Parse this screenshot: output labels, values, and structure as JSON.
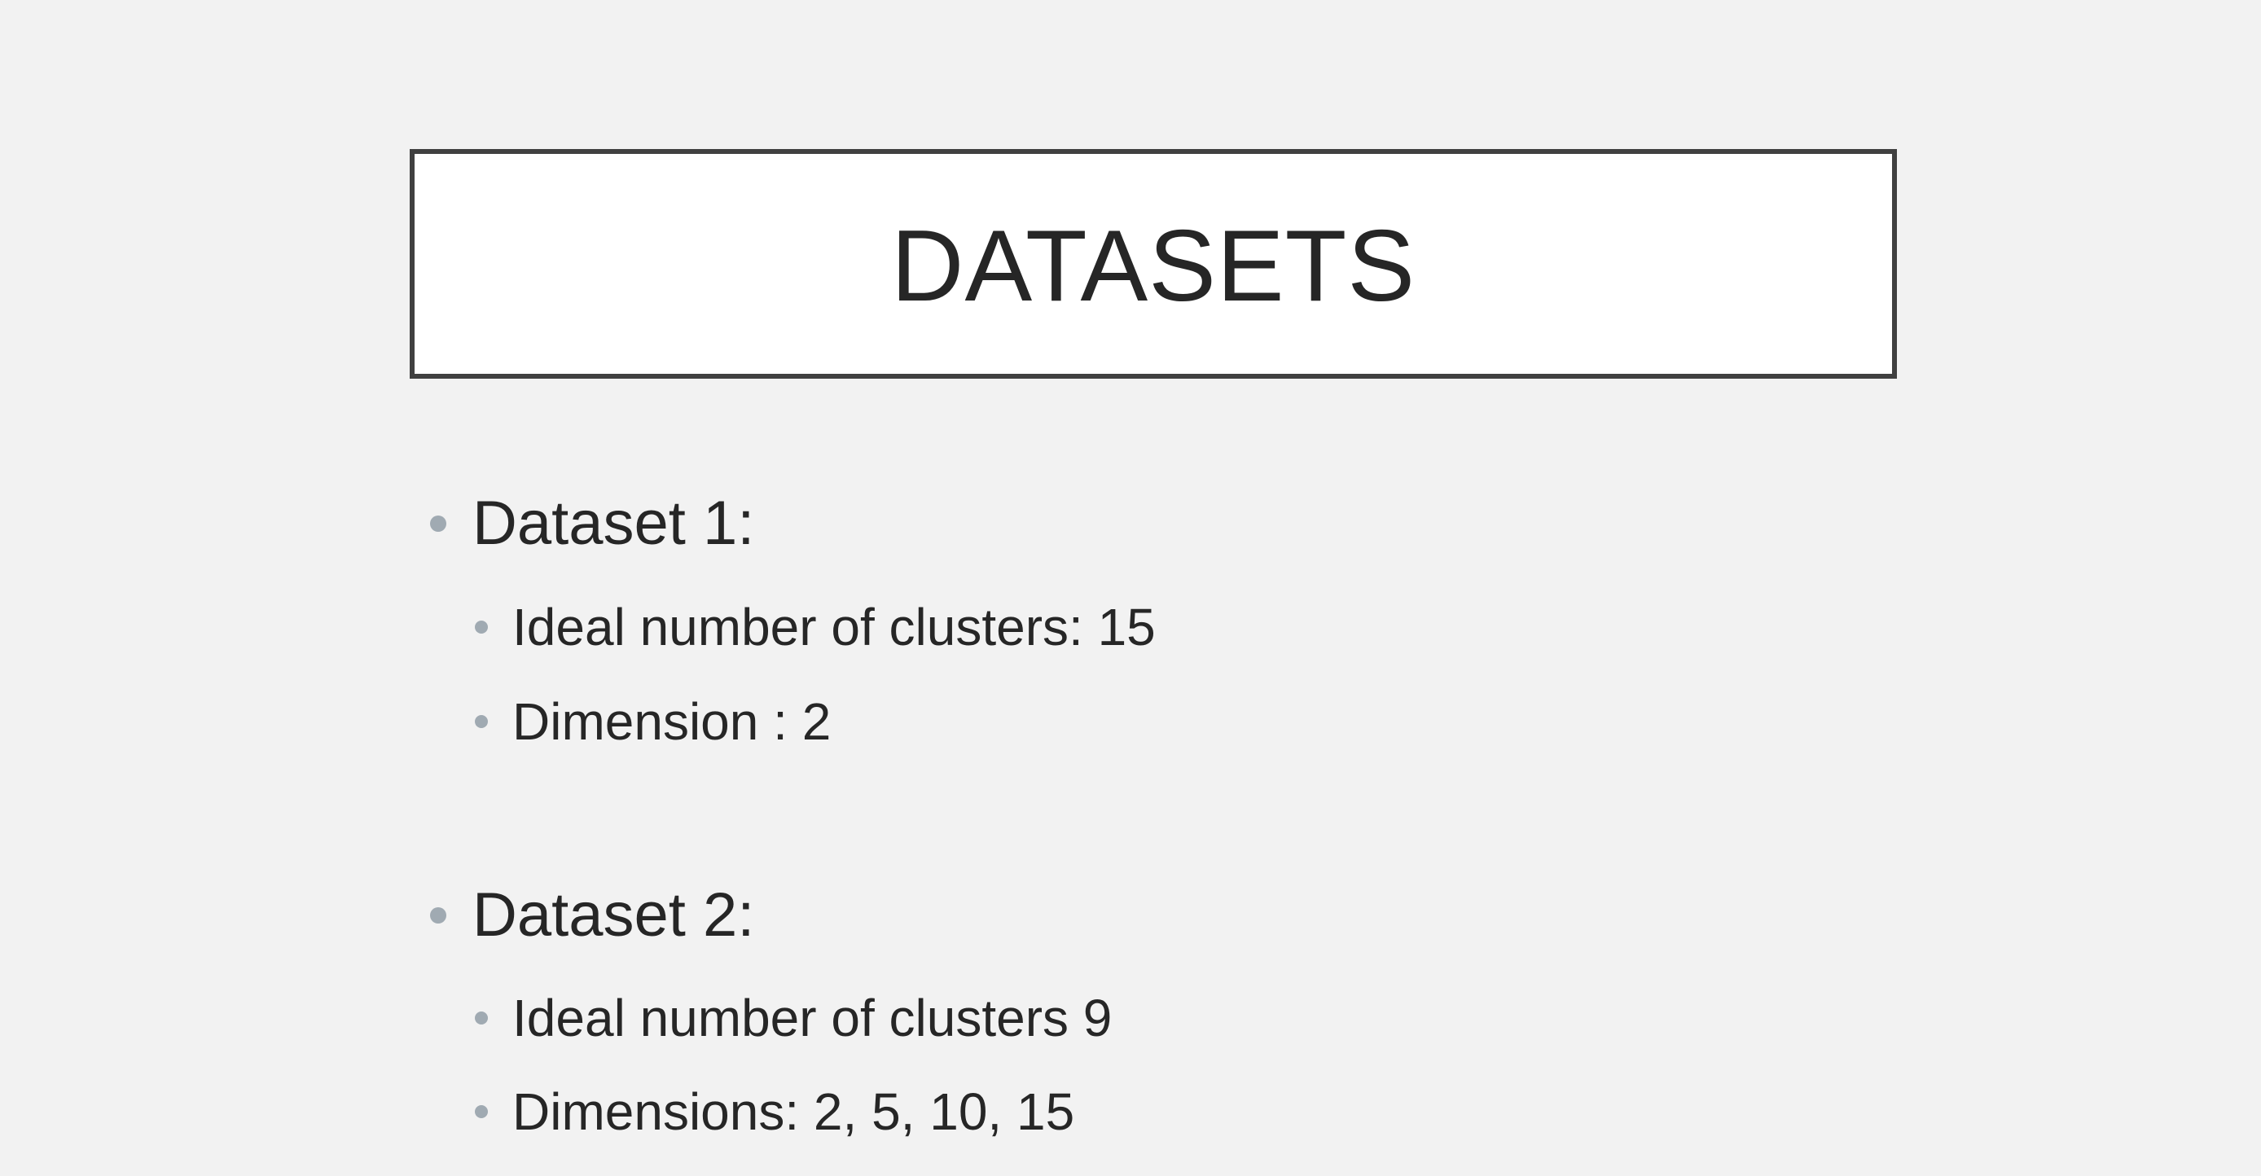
{
  "title": "DATASETS",
  "datasets": [
    {
      "label": "Dataset 1:",
      "points": [
        "Ideal number of clusters:  15",
        "Dimension : 2"
      ]
    },
    {
      "label": "Dataset 2:",
      "points": [
        "Ideal number of clusters 9",
        "Dimensions: 2, 5, 10, 15"
      ]
    }
  ],
  "colors": {
    "background": "#f2f2f2",
    "title_border": "#404040",
    "text": "#262626",
    "bullet": "#a0aab2"
  }
}
